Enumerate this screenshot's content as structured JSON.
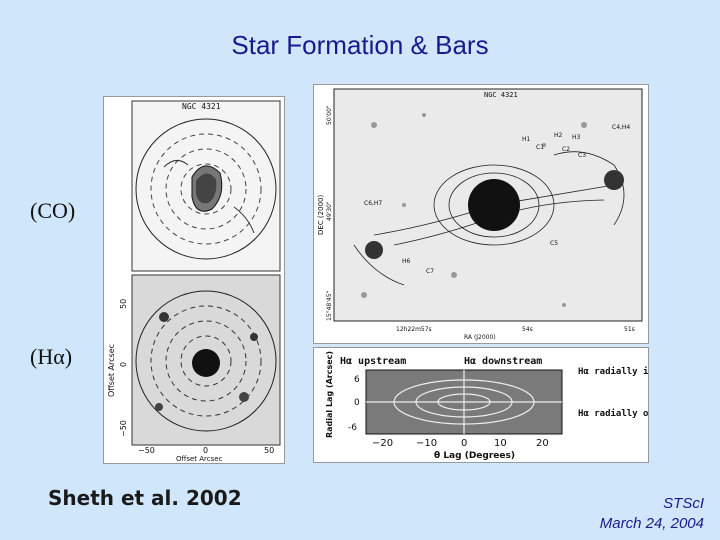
{
  "slide": {
    "title": "Star Formation & Bars",
    "label_co": "(CO)",
    "label_ha": "(Hα)",
    "citation": "Sheth et al. 2002",
    "footer_org": "STScI",
    "footer_date": "March 24, 2004"
  },
  "left_panel": {
    "galaxy_label": "NGC 4321",
    "y_axis_label": "Offset Arcsec",
    "x_axis_label": "Offset Arcsec",
    "y_ticks": [
      "50",
      "0",
      "−50"
    ],
    "x_ticks": [
      "−50",
      "0",
      "50"
    ]
  },
  "right_panel": {
    "galaxy_label": "NGC 4321",
    "y_axis_label": "DEC (2000)",
    "x_axis_label": "RA (J2000)",
    "dec_ticks": [
      "50'00\"",
      "49'30\"",
      "15°48'45\""
    ],
    "ra_ticks": [
      "12h22m57s",
      "54s",
      "51s"
    ],
    "region_labels": [
      "H1",
      "H2",
      "H3",
      "C1",
      "C2",
      "C3",
      "C4,H4",
      "C5",
      "C6,H7",
      "H6",
      "C7"
    ]
  },
  "lag_panel": {
    "upstream_label": "Hα upstream",
    "downstream_label": "Hα downstream",
    "inwards_label": "Hα radially inwards",
    "outwards_label": "Hα radially outwards",
    "y_axis_label": "Radial Lag (Arcsec)",
    "y_ticks": [
      "6",
      "0",
      "-6"
    ],
    "x_axis_label": "θ Lag (Degrees)",
    "x_ticks": [
      "−20",
      "−10",
      "0",
      "10",
      "20"
    ]
  }
}
